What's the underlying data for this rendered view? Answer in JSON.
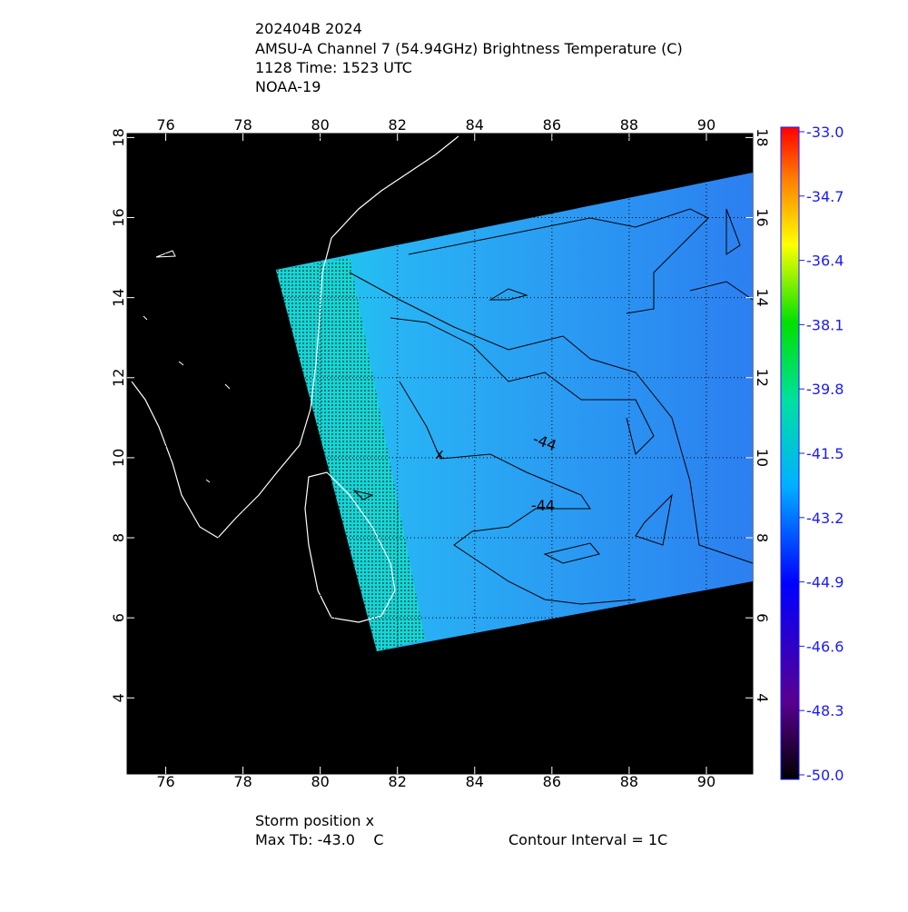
{
  "header": {
    "lines": [
      "202404B 2024",
      "AMSU-A Channel 7 (54.94GHz) Brightness Temperature (C)",
      "1128 Time: 1523 UTC",
      "NOAA-19"
    ]
  },
  "map": {
    "xlim": [
      75.0,
      91.2
    ],
    "ylim": [
      2.1,
      18.1
    ],
    "xticks": [
      76,
      78,
      80,
      82,
      84,
      86,
      88,
      90
    ],
    "yticks": [
      4,
      6,
      8,
      10,
      12,
      14,
      16,
      18
    ],
    "contour_labels": [
      "-44",
      "-44"
    ]
  },
  "colorbar": {
    "lim": [
      -50,
      -33
    ],
    "ticks": [
      {
        "value": -33,
        "label": "-33.0"
      },
      {
        "value": -34.7,
        "label": "-34.7"
      },
      {
        "value": -36.4,
        "label": "-36.4"
      },
      {
        "value": -38.1,
        "label": "-38.1"
      },
      {
        "value": -39.8,
        "label": "-39.8"
      },
      {
        "value": -41.5,
        "label": "-41.5"
      },
      {
        "value": -43.2,
        "label": "-43.2"
      },
      {
        "value": -44.9,
        "label": "-44.9"
      },
      {
        "value": -46.6,
        "label": "-46.6"
      },
      {
        "value": -48.3,
        "label": "-48.3"
      },
      {
        "value": -50,
        "label": "-50.0"
      }
    ]
  },
  "footer": {
    "storm": "Storm position x",
    "max_tb": "Max Tb: -43.0    C",
    "interval": "Contour Interval = 1C"
  }
}
